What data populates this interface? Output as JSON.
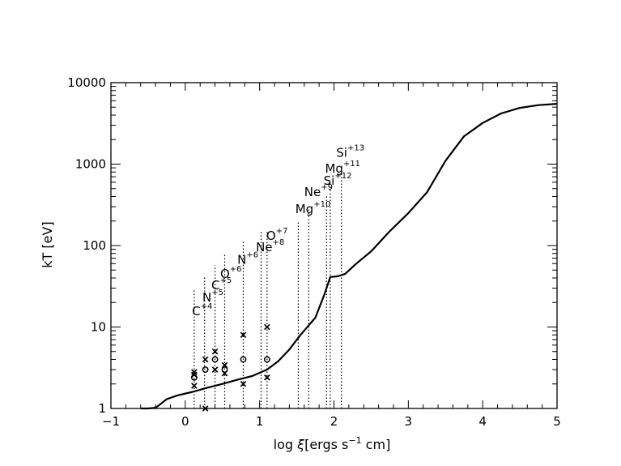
{
  "chart_data": {
    "type": "line",
    "title": "",
    "xlabel": {
      "prefix": "log ",
      "xi": "ξ",
      "bracket_open": "[ergs s",
      "exp": "−1",
      "bracket_close": " cm]"
    },
    "ylabel": "kT [eV]",
    "xlim": [
      -1,
      5
    ],
    "ylim": [
      1,
      10000
    ],
    "yscale": "log",
    "grid": false,
    "x_ticks": [
      -1,
      0,
      1,
      2,
      3,
      4,
      5
    ],
    "x_tick_labels": [
      "−1",
      "0",
      "1",
      "2",
      "3",
      "4",
      "5"
    ],
    "y_ticks": [
      1,
      10,
      100,
      1000,
      10000
    ],
    "y_tick_labels": [
      "1",
      "10",
      "100",
      "1000",
      "10000"
    ],
    "series": [
      {
        "style": "solid",
        "x": [
          -0.6,
          -0.5,
          -0.4,
          -0.35,
          -0.25,
          -0.1,
          0.1,
          0.3,
          0.5,
          0.7,
          0.9,
          1.1,
          1.25,
          1.4,
          1.55,
          1.75,
          1.87,
          1.95,
          2.05,
          2.15,
          2.3,
          2.5,
          2.75,
          3.0,
          3.25,
          3.5,
          3.75,
          4.0,
          4.25,
          4.5,
          4.75,
          5.0
        ],
        "y": [
          1.0,
          1.0,
          1.02,
          1.1,
          1.3,
          1.45,
          1.6,
          1.8,
          2.0,
          2.25,
          2.5,
          3.0,
          3.8,
          5.3,
          8.0,
          13.0,
          25.0,
          41.0,
          42.0,
          45.0,
          60.0,
          85.0,
          150.0,
          250.0,
          450.0,
          1100.0,
          2200.0,
          3200.0,
          4200.0,
          4900.0,
          5300.0,
          5500.0
        ]
      }
    ],
    "ion_lines": [
      {
        "ion": "C",
        "charge": "+4",
        "x": 0.12,
        "top": 28
      },
      {
        "ion": "N",
        "charge": "+5",
        "x": 0.26,
        "top": 41
      },
      {
        "ion": "C",
        "charge": "+5",
        "x": 0.4,
        "top": 57
      },
      {
        "ion": "O",
        "charge": "+6",
        "x": 0.53,
        "top": 78
      },
      {
        "ion": "N",
        "charge": "+6",
        "x": 0.78,
        "top": 115
      },
      {
        "ion": "Ne",
        "charge": "+8",
        "x": 1.02,
        "top": 150
      },
      {
        "ion": "O",
        "charge": "+7",
        "x": 1.1,
        "top": 155
      },
      {
        "ion": "Mg",
        "charge": "+10",
        "x": 1.52,
        "top": 195
      },
      {
        "ion": "Ne",
        "charge": "+9",
        "x": 1.66,
        "top": 290
      },
      {
        "ion": "Si",
        "charge": "+12",
        "x": 1.9,
        "top": 400
      },
      {
        "ion": "Mg",
        "charge": "+11",
        "x": 1.95,
        "top": 580
      },
      {
        "ion": "Si",
        "charge": "+13",
        "x": 2.1,
        "top": 900
      }
    ],
    "ion_labels": [
      {
        "text": "C",
        "sup": "+4",
        "x": 0.09,
        "y": 14
      },
      {
        "text": "N",
        "sup": "+5",
        "x": 0.23,
        "y": 20.5
      },
      {
        "text": "C",
        "sup": "+5",
        "x": 0.35,
        "y": 29
      },
      {
        "text": "O",
        "sup": "+6",
        "x": 0.47,
        "y": 40
      },
      {
        "text": "N",
        "sup": "+6",
        "x": 0.7,
        "y": 60
      },
      {
        "text": "Ne",
        "sup": "+8",
        "x": 0.95,
        "y": 85
      },
      {
        "text": "O",
        "sup": "+7",
        "x": 1.09,
        "y": 118
      },
      {
        "text": "Mg",
        "sup": "+10",
        "x": 1.48,
        "y": 250
      },
      {
        "text": "Ne",
        "sup": "+9",
        "x": 1.6,
        "y": 405
      },
      {
        "text": "Si",
        "sup": "+12",
        "x": 1.86,
        "y": 560
      },
      {
        "text": "Mg",
        "sup": "+11",
        "x": 1.88,
        "y": 790
      },
      {
        "text": "Si",
        "sup": "+13",
        "x": 2.03,
        "y": 1230
      }
    ],
    "markers_x": [
      {
        "x": 0.12,
        "y": 1.9
      },
      {
        "x": 0.12,
        "y": 2.6
      },
      {
        "x": 0.12,
        "y": 2.8
      },
      {
        "x": 0.27,
        "y": 4.0
      },
      {
        "x": 0.27,
        "y": 1.0
      },
      {
        "x": 0.4,
        "y": 5.0
      },
      {
        "x": 0.4,
        "y": 3.0
      },
      {
        "x": 0.53,
        "y": 3.4
      },
      {
        "x": 0.53,
        "y": 2.7
      },
      {
        "x": 0.78,
        "y": 8.0
      },
      {
        "x": 0.78,
        "y": 2.0
      },
      {
        "x": 1.1,
        "y": 10.0
      },
      {
        "x": 1.1,
        "y": 2.4
      }
    ],
    "markers_o": [
      {
        "x": 0.12,
        "y": 2.4
      },
      {
        "x": 0.27,
        "y": 3.0
      },
      {
        "x": 0.4,
        "y": 4.0
      },
      {
        "x": 0.53,
        "y": 3.0
      },
      {
        "x": 0.78,
        "y": 4.0
      },
      {
        "x": 1.1,
        "y": 4.0
      }
    ]
  }
}
